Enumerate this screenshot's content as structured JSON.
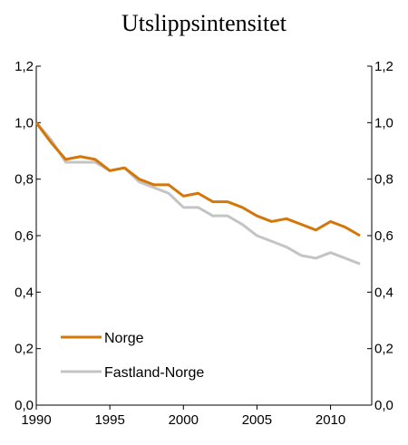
{
  "chart_data": {
    "type": "line",
    "title": "Utslippsintensitet",
    "xlabel": "",
    "ylabel": "",
    "x": [
      1990,
      1991,
      1992,
      1993,
      1994,
      1995,
      1996,
      1997,
      1998,
      1999,
      2000,
      2001,
      2002,
      2003,
      2004,
      2005,
      2006,
      2007,
      2008,
      2009,
      2010,
      2011,
      2012
    ],
    "xlim": [
      1990,
      2012.8
    ],
    "ylim": [
      0.0,
      1.2
    ],
    "x_ticks": [
      1990,
      1995,
      2000,
      2005,
      2010
    ],
    "x_tick_labels": [
      "1990",
      "1995",
      "2000",
      "2005",
      "2010"
    ],
    "y_ticks": [
      0.0,
      0.2,
      0.4,
      0.6,
      0.8,
      1.0,
      1.2
    ],
    "y_tick_labels": [
      "0,0",
      "0,2",
      "0,4",
      "0,6",
      "0,8",
      "1,0",
      "1,2"
    ],
    "grid": false,
    "legend_position": "bottom-left",
    "series": [
      {
        "name": "Norge",
        "color": "#D4770B",
        "values": [
          1.0,
          0.93,
          0.87,
          0.88,
          0.87,
          0.83,
          0.84,
          0.8,
          0.78,
          0.78,
          0.74,
          0.75,
          0.72,
          0.72,
          0.7,
          0.67,
          0.65,
          0.66,
          0.64,
          0.62,
          0.65,
          0.63,
          0.6
        ]
      },
      {
        "name": "Fastland-Norge",
        "color": "#C4C4C4",
        "values": [
          1.0,
          0.94,
          0.86,
          0.86,
          0.86,
          0.83,
          0.84,
          0.79,
          0.77,
          0.75,
          0.7,
          0.7,
          0.67,
          0.67,
          0.64,
          0.6,
          0.58,
          0.56,
          0.53,
          0.52,
          0.54,
          0.52,
          0.5
        ]
      }
    ]
  }
}
